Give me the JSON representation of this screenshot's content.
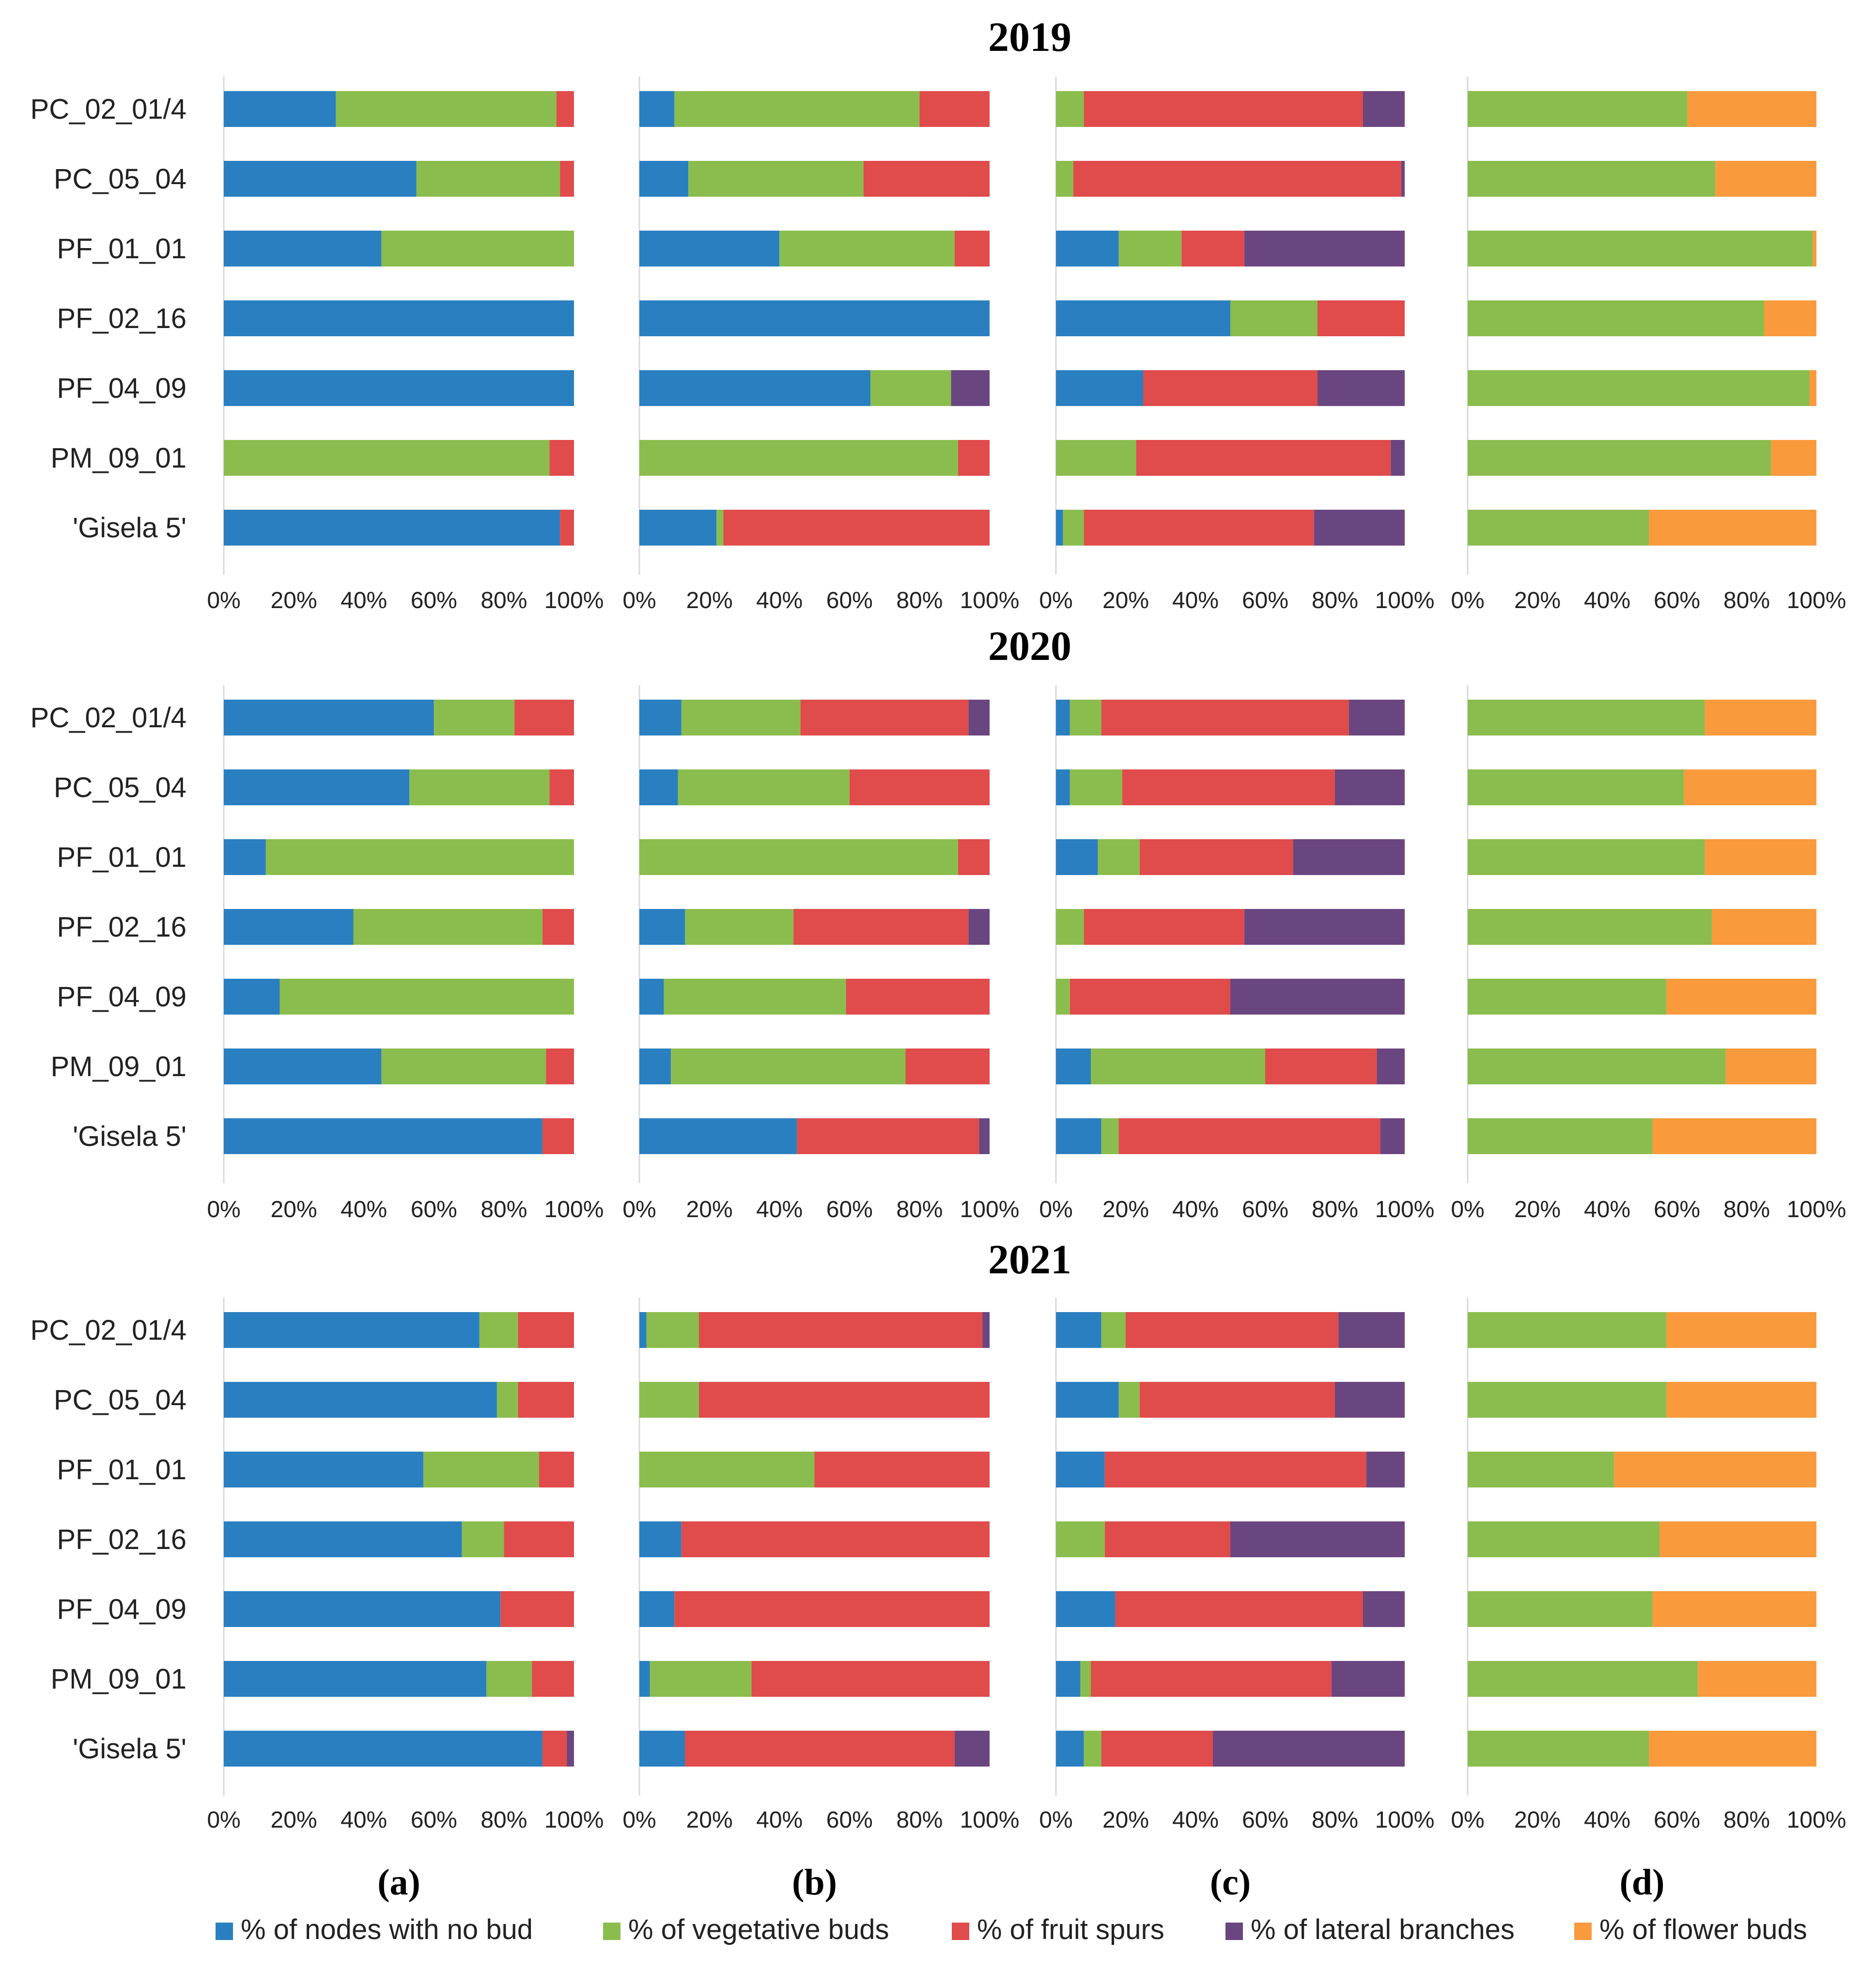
{
  "figure": {
    "panel_letters": [
      "(a)",
      "(b)",
      "(c)",
      "(d)"
    ]
  },
  "chart_data": {
    "type": "bar",
    "orientation": "horizontal",
    "stacked": "percent",
    "categories": [
      "PC_02_01/4",
      "PC_05_04",
      "PF_01_01",
      "PF_02_16",
      "PF_04_09",
      "PM_09_01",
      "'Gisela 5'"
    ],
    "tick_labels": [
      "0%",
      "20%",
      "40%",
      "60%",
      "80%",
      "100%"
    ],
    "xlim": [
      0,
      100
    ],
    "legend": [
      {
        "key": "no_bud",
        "label": "% of nodes with no bud",
        "color": "#2a7fc1"
      },
      {
        "key": "vegetative",
        "label": "% of vegetative buds",
        "color": "#8bbd4e"
      },
      {
        "key": "fruit_spurs",
        "label": "% of fruit spurs",
        "color": "#e04b4b"
      },
      {
        "key": "lateral",
        "label": "% of lateral branches",
        "color": "#6a4680"
      },
      {
        "key": "flower",
        "label": "% of flower buds",
        "color": "#f99a3d"
      }
    ],
    "years": [
      {
        "title": "2019",
        "panels": [
          {
            "letter": "(a)",
            "series_keys": [
              "no_bud",
              "vegetative",
              "fruit_spurs",
              "lateral"
            ],
            "values": [
              [
                32,
                63,
                5,
                0
              ],
              [
                55,
                41,
                4,
                0
              ],
              [
                45,
                55,
                0,
                0
              ],
              [
                100,
                0,
                0,
                0
              ],
              [
                100,
                0,
                0,
                0
              ],
              [
                0,
                93,
                7,
                0
              ],
              [
                96,
                0,
                4,
                0
              ]
            ]
          },
          {
            "letter": "(b)",
            "series_keys": [
              "no_bud",
              "vegetative",
              "fruit_spurs",
              "lateral"
            ],
            "values": [
              [
                10,
                70,
                20,
                0
              ],
              [
                14,
                50,
                36,
                0
              ],
              [
                40,
                50,
                10,
                0
              ],
              [
                100,
                0,
                0,
                0
              ],
              [
                66,
                23,
                0,
                11
              ],
              [
                0,
                91,
                9,
                0
              ],
              [
                22,
                2,
                76,
                0
              ]
            ]
          },
          {
            "letter": "(c)",
            "series_keys": [
              "no_bud",
              "vegetative",
              "fruit_spurs",
              "lateral"
            ],
            "values": [
              [
                0,
                8,
                80,
                12
              ],
              [
                0,
                5,
                94,
                1
              ],
              [
                18,
                18,
                18,
                46
              ],
              [
                50,
                25,
                25,
                0
              ],
              [
                25,
                0,
                50,
                25
              ],
              [
                0,
                23,
                73,
                4
              ],
              [
                2,
                6,
                66,
                26
              ]
            ]
          },
          {
            "letter": "(d)",
            "series_keys": [
              "vegetative",
              "flower"
            ],
            "values": [
              [
                63,
                37
              ],
              [
                71,
                29
              ],
              [
                99,
                1
              ],
              [
                85,
                15
              ],
              [
                98,
                2
              ],
              [
                87,
                13
              ],
              [
                52,
                48
              ]
            ]
          }
        ]
      },
      {
        "title": "2020",
        "panels": [
          {
            "letter": "(a)",
            "series_keys": [
              "no_bud",
              "vegetative",
              "fruit_spurs",
              "lateral"
            ],
            "values": [
              [
                60,
                23,
                17,
                0
              ],
              [
                53,
                40,
                7,
                0
              ],
              [
                12,
                88,
                0,
                0
              ],
              [
                37,
                54,
                9,
                0
              ],
              [
                16,
                84,
                0,
                0
              ],
              [
                45,
                47,
                8,
                0
              ],
              [
                91,
                0,
                9,
                0
              ]
            ]
          },
          {
            "letter": "(b)",
            "series_keys": [
              "no_bud",
              "vegetative",
              "fruit_spurs",
              "lateral"
            ],
            "values": [
              [
                12,
                34,
                48,
                6
              ],
              [
                11,
                49,
                40,
                0
              ],
              [
                0,
                91,
                9,
                0
              ],
              [
                13,
                31,
                50,
                6
              ],
              [
                7,
                52,
                41,
                0
              ],
              [
                9,
                67,
                24,
                0
              ],
              [
                45,
                0,
                52,
                3
              ]
            ]
          },
          {
            "letter": "(c)",
            "series_keys": [
              "no_bud",
              "vegetative",
              "fruit_spurs",
              "lateral"
            ],
            "values": [
              [
                4,
                9,
                71,
                16
              ],
              [
                4,
                15,
                61,
                20
              ],
              [
                12,
                12,
                44,
                32
              ],
              [
                0,
                8,
                46,
                46
              ],
              [
                0,
                4,
                46,
                50
              ],
              [
                10,
                50,
                32,
                8
              ],
              [
                13,
                5,
                75,
                7
              ]
            ]
          },
          {
            "letter": "(d)",
            "series_keys": [
              "vegetative",
              "flower"
            ],
            "values": [
              [
                68,
                32
              ],
              [
                62,
                38
              ],
              [
                68,
                32
              ],
              [
                70,
                30
              ],
              [
                57,
                43
              ],
              [
                74,
                26
              ],
              [
                53,
                47
              ]
            ]
          }
        ]
      },
      {
        "title": "2021",
        "panels": [
          {
            "letter": "(a)",
            "series_keys": [
              "no_bud",
              "vegetative",
              "fruit_spurs",
              "lateral"
            ],
            "values": [
              [
                73,
                11,
                16,
                0
              ],
              [
                78,
                6,
                16,
                0
              ],
              [
                57,
                33,
                10,
                0
              ],
              [
                68,
                12,
                20,
                0
              ],
              [
                79,
                0,
                21,
                0
              ],
              [
                75,
                13,
                12,
                0
              ],
              [
                91,
                0,
                7,
                2
              ]
            ]
          },
          {
            "letter": "(b)",
            "series_keys": [
              "no_bud",
              "vegetative",
              "fruit_spurs",
              "lateral"
            ],
            "values": [
              [
                2,
                15,
                81,
                2
              ],
              [
                0,
                17,
                83,
                0
              ],
              [
                0,
                50,
                50,
                0
              ],
              [
                12,
                0,
                88,
                0
              ],
              [
                10,
                0,
                90,
                0
              ],
              [
                3,
                29,
                68,
                0
              ],
              [
                13,
                0,
                77,
                10
              ]
            ]
          },
          {
            "letter": "(c)",
            "series_keys": [
              "no_bud",
              "vegetative",
              "fruit_spurs",
              "lateral"
            ],
            "values": [
              [
                13,
                7,
                61,
                19
              ],
              [
                18,
                6,
                56,
                20
              ],
              [
                14,
                0,
                75,
                11
              ],
              [
                0,
                14,
                36,
                50
              ],
              [
                17,
                0,
                71,
                12
              ],
              [
                7,
                3,
                69,
                21
              ],
              [
                8,
                5,
                32,
                55
              ]
            ]
          },
          {
            "letter": "(d)",
            "series_keys": [
              "vegetative",
              "flower"
            ],
            "values": [
              [
                57,
                43
              ],
              [
                57,
                43
              ],
              [
                42,
                58
              ],
              [
                55,
                45
              ],
              [
                53,
                47
              ],
              [
                66,
                34
              ],
              [
                52,
                48
              ]
            ]
          }
        ]
      }
    ]
  }
}
